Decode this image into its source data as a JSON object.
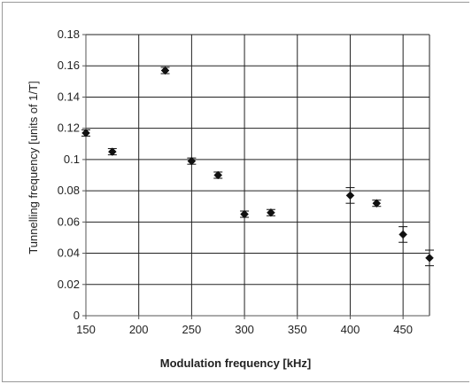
{
  "chart_data": {
    "type": "scatter",
    "title": "",
    "xlabel": "Modulation frequency [kHz]",
    "ylabel": "Tunnelling frequency [units of 1/T]",
    "xlim": [
      150,
      475
    ],
    "ylim": [
      0,
      0.18
    ],
    "grid": true,
    "legend": "none",
    "x_ticks": [
      "150",
      "200",
      "250",
      "300",
      "350",
      "400",
      "450"
    ],
    "y_ticks": [
      "0",
      "0.02",
      "0.04",
      "0.06",
      "0.08",
      "0.1",
      "0.12",
      "0.14",
      "0.16",
      "0.18"
    ],
    "points": [
      {
        "x": 150,
        "y": 0.117,
        "err": 0.002
      },
      {
        "x": 175,
        "y": 0.105,
        "err": 0.002
      },
      {
        "x": 225,
        "y": 0.157,
        "err": 0.002
      },
      {
        "x": 250,
        "y": 0.099,
        "err": 0.002
      },
      {
        "x": 275,
        "y": 0.09,
        "err": 0.002
      },
      {
        "x": 300,
        "y": 0.065,
        "err": 0.002
      },
      {
        "x": 325,
        "y": 0.066,
        "err": 0.002
      },
      {
        "x": 400,
        "y": 0.077,
        "err": 0.005
      },
      {
        "x": 425,
        "y": 0.072,
        "err": 0.002
      },
      {
        "x": 450,
        "y": 0.052,
        "err": 0.005
      },
      {
        "x": 475,
        "y": 0.037,
        "err": 0.005
      }
    ],
    "colors": {
      "marker": "#111111",
      "grid": "#222222",
      "axis": "#555555"
    }
  }
}
